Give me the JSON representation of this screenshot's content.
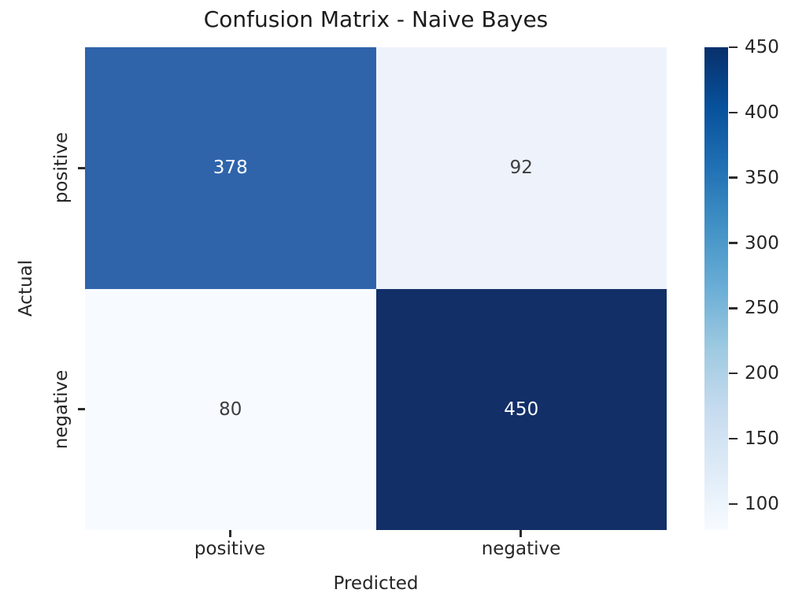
{
  "chart_data": {
    "type": "heatmap",
    "title": "Confusion Matrix - Naive Bayes",
    "xlabel": "Predicted",
    "ylabel": "Actual",
    "x_tick_labels": [
      "positive",
      "negative"
    ],
    "y_tick_labels": [
      "positive",
      "negative"
    ],
    "values": [
      [
        378,
        92
      ],
      [
        80,
        450
      ]
    ],
    "vmin": 80,
    "vmax": 450,
    "colormap": "Blues",
    "grid": false,
    "legend": "colorbar-right",
    "text_color": "#262626",
    "cell_colors": [
      [
        "#2f64ab",
        "#eef3fb"
      ],
      [
        "#f7faff",
        "#122f68"
      ]
    ],
    "cell_text_colors": [
      [
        "#ffffff",
        "#3d3d3d"
      ],
      [
        "#3d3d3d",
        "#ffffff"
      ]
    ],
    "colorbar": {
      "ticks": [
        450,
        400,
        350,
        300,
        250,
        200,
        150,
        100
      ],
      "gradient_stops": [
        "#f7fbff",
        "#deebf7",
        "#c6dbef",
        "#9ecae1",
        "#6baed6",
        "#4292c6",
        "#2171b5",
        "#08519c",
        "#08306b"
      ]
    }
  }
}
